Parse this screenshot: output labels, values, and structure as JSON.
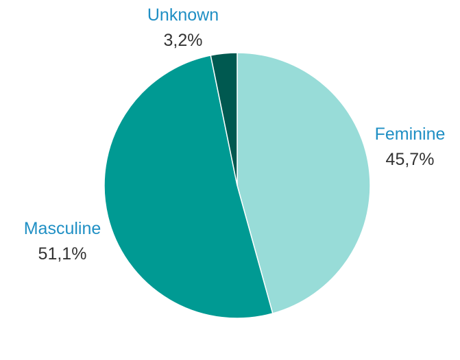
{
  "chart_data": {
    "type": "pie",
    "slices": [
      {
        "label": "Feminine",
        "value": 45.7,
        "value_label": "45,7%",
        "color": "#98dcd8"
      },
      {
        "label": "Masculine",
        "value": 51.1,
        "value_label": "51,1%",
        "color": "#009a93"
      },
      {
        "label": "Unknown",
        "value": 3.2,
        "value_label": "3,2%",
        "color": "#005950"
      }
    ],
    "start_angle_deg": 0,
    "direction": "clockwise",
    "legend": "none",
    "label_color": "#1f8fc4",
    "value_color": "#333333"
  }
}
